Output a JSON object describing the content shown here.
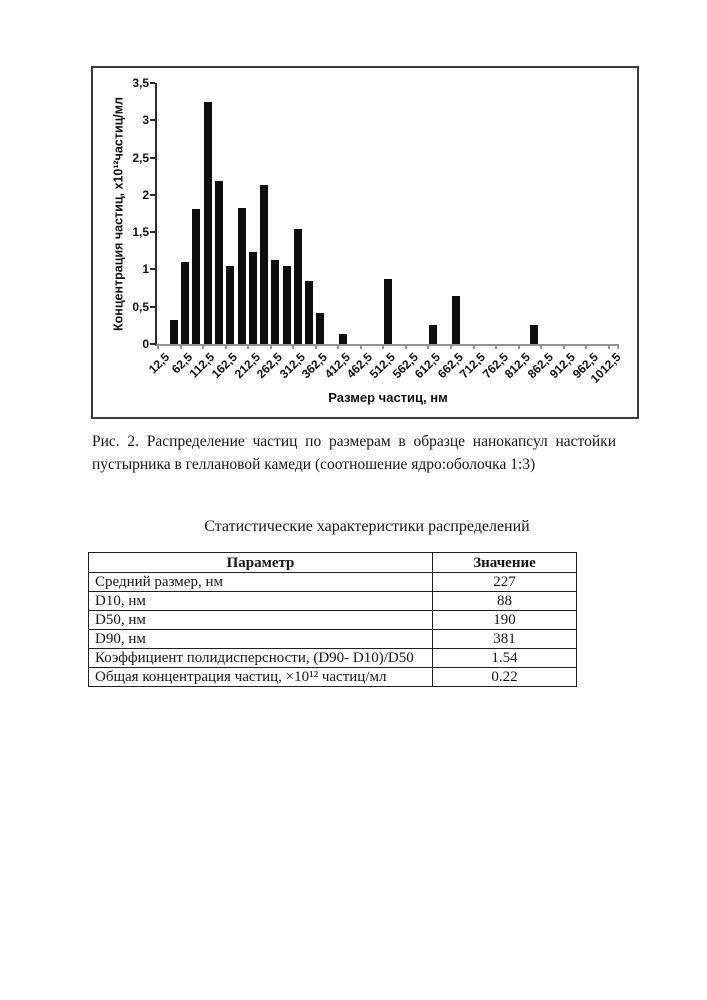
{
  "figure": {
    "caption_lines": [
      "Рис. 2. Распределение частиц по размерам в образце нанокапсул настойки",
      "пустырника в геллановой камеди (соотношение ядро:оболочка 1:3)"
    ]
  },
  "chart_data": {
    "type": "bar",
    "title": "",
    "xlabel": "Размер частиц, нм",
    "ylabel": "Концентрация частиц, х10¹²частиц/мл",
    "ylim": [
      0,
      3.5
    ],
    "y_tick_step": 0.5,
    "y_tick_labels": [
      "0",
      "0,5",
      "1",
      "1,5",
      "2",
      "2,5",
      "3",
      "3,5"
    ],
    "x_tick_labels": [
      "12,5",
      "62,5",
      "112,5",
      "162,5",
      "212,5",
      "262,5",
      "312,5",
      "362,5",
      "412,5",
      "462,5",
      "512,5",
      "562,5",
      "612,5",
      "662,5",
      "712,5",
      "762,5",
      "812,5",
      "862,5",
      "912,5",
      "962,5",
      "1012,5"
    ],
    "x_start_nm": 12.5,
    "bin_width_nm": 25,
    "num_bins": 41,
    "grid": false,
    "legend": null,
    "bar_color": "#0e0e0e",
    "bars": [
      {
        "size_nm": 37.5,
        "value": 0.32
      },
      {
        "size_nm": 62.5,
        "value": 1.1
      },
      {
        "size_nm": 87.5,
        "value": 1.81
      },
      {
        "size_nm": 112.5,
        "value": 3.24
      },
      {
        "size_nm": 137.5,
        "value": 2.18
      },
      {
        "size_nm": 162.5,
        "value": 1.05
      },
      {
        "size_nm": 187.5,
        "value": 1.82
      },
      {
        "size_nm": 212.5,
        "value": 1.23
      },
      {
        "size_nm": 237.5,
        "value": 2.13
      },
      {
        "size_nm": 262.5,
        "value": 1.13
      },
      {
        "size_nm": 287.5,
        "value": 1.04
      },
      {
        "size_nm": 312.5,
        "value": 1.54
      },
      {
        "size_nm": 337.5,
        "value": 0.84
      },
      {
        "size_nm": 362.5,
        "value": 0.41
      },
      {
        "size_nm": 412.5,
        "value": 0.14
      },
      {
        "size_nm": 512.5,
        "value": 0.87
      },
      {
        "size_nm": 612.5,
        "value": 0.26
      },
      {
        "size_nm": 662.5,
        "value": 0.65
      },
      {
        "size_nm": 837.5,
        "value": 0.26
      }
    ]
  },
  "stats_table": {
    "title": "Статистические характеристики распределений",
    "headers": [
      "Параметр",
      "Значение"
    ],
    "rows": [
      {
        "parameter": "Средний размер, нм",
        "value": "227"
      },
      {
        "parameter": "D10, нм",
        "value": "88"
      },
      {
        "parameter": "D50, нм",
        "value": "190"
      },
      {
        "parameter": "D90, нм",
        "value": "381"
      },
      {
        "parameter": "Коэффициент полидисперсности, (D90- D10)/D50",
        "value": "1.54"
      },
      {
        "parameter": "Общая концентрация частиц, ×10¹² частиц/мл",
        "value": "0.22"
      }
    ]
  }
}
